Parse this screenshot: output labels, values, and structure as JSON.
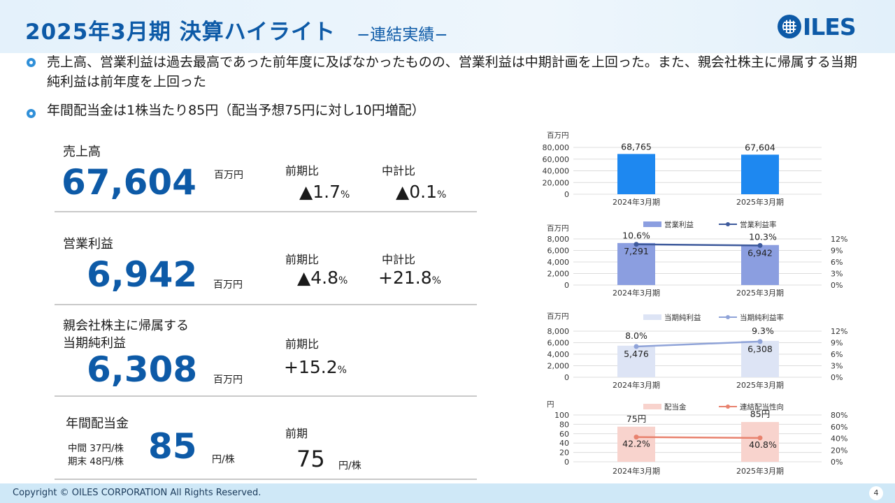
{
  "header": {
    "title": "2025年3月期 決算ハイライト",
    "subtitle": "−連結実績−",
    "logo_text": "ILES"
  },
  "bullets": [
    "売上高、営業利益は過去最高であった前年度に及ばなかったものの、営業利益は中期計画を上回った。また、親会社株主に帰属する当期純利益は前年度を上回った",
    "年間配当金は1株当たり85円（配当予想75円に対し10円増配）"
  ],
  "kpis": {
    "sales": {
      "label": "売上高",
      "value": "67,604",
      "unit": "百万円",
      "yoy_label": "前期比",
      "yoy": "▲1.7",
      "plan_label": "中計比",
      "plan": "▲0.1",
      "pct": "%"
    },
    "op": {
      "label": "営業利益",
      "value": "6,942",
      "unit": "百万円",
      "yoy_label": "前期比",
      "yoy": "▲4.8",
      "plan_label": "中計比",
      "plan": "+21.8",
      "pct": "%"
    },
    "net": {
      "label_line1": "親会社株主に帰属する",
      "label_line2": "当期純利益",
      "value": "6,308",
      "unit": "百万円",
      "yoy_label": "前期比",
      "yoy": "+15.2",
      "pct": "%"
    },
    "div": {
      "label": "年間配当金",
      "interim": "中間 37円/株",
      "final": "期末 48円/株",
      "value": "85",
      "unit": "円/株",
      "prev_label": "前期",
      "prev_value": "75",
      "prev_unit": "円/株"
    }
  },
  "chart_data": [
    {
      "type": "bar",
      "unit_label": "百万円",
      "categories": [
        "2024年3月期",
        "2025年3月期"
      ],
      "series": [
        {
          "values": [
            68765,
            67604
          ],
          "labels": [
            "68,765",
            "67,604"
          ],
          "color": "#1e88f0"
        }
      ],
      "yticks": [
        "80,000",
        "60,000",
        "40,000",
        "20,000",
        "0"
      ],
      "ylim": [
        0,
        80000
      ]
    },
    {
      "type": "bar",
      "unit_label": "百万円",
      "categories": [
        "2024年3月期",
        "2025年3月期"
      ],
      "series": [
        {
          "name": "営業利益",
          "values": [
            7291,
            6942
          ],
          "labels": [
            "7,291",
            "6,942"
          ],
          "color": "#8b9ee0"
        },
        {
          "name": "営業利益率",
          "type": "line",
          "values": [
            10.6,
            10.3
          ],
          "labels": [
            "10.6%",
            "10.3%"
          ],
          "color": "#3e5a9c"
        }
      ],
      "yticks": [
        "8,000",
        "6,000",
        "4,000",
        "2,000",
        "0"
      ],
      "ylim": [
        0,
        8000
      ],
      "y2ticks": [
        "12%",
        "9%",
        "6%",
        "3%",
        "0%"
      ],
      "y2lim": [
        0,
        12
      ]
    },
    {
      "type": "bar",
      "unit_label": "百万円",
      "categories": [
        "2024年3月期",
        "2025年3月期"
      ],
      "series": [
        {
          "name": "当期純利益",
          "values": [
            5476,
            6308
          ],
          "labels": [
            "5,476",
            "6,308"
          ],
          "color": "#dde4f5"
        },
        {
          "name": "当期純利益率",
          "type": "line",
          "values": [
            8.0,
            9.3
          ],
          "labels": [
            "8.0%",
            "9.3%"
          ],
          "color": "#8fa3d8"
        }
      ],
      "yticks": [
        "8,000",
        "6,000",
        "4,000",
        "2,000",
        "0"
      ],
      "ylim": [
        0,
        8000
      ],
      "y2ticks": [
        "12%",
        "9%",
        "6%",
        "3%",
        "0%"
      ],
      "y2lim": [
        0,
        12
      ]
    },
    {
      "type": "bar",
      "unit_label": "円",
      "categories": [
        "2024年3月期",
        "2025年3月期"
      ],
      "series": [
        {
          "name": "配当金",
          "values": [
            75,
            85
          ],
          "labels": [
            "75円",
            "85円"
          ],
          "color": "#f8d3cd"
        },
        {
          "name": "連結配当性向",
          "type": "line",
          "values": [
            42.2,
            40.8
          ],
          "labels": [
            "42.2%",
            "40.8%"
          ],
          "color": "#e8826e"
        }
      ],
      "yticks": [
        "100",
        "80",
        "60",
        "40",
        "20",
        "0"
      ],
      "ylim": [
        0,
        100
      ],
      "y2ticks": [
        "80%",
        "60%",
        "40%",
        "20%",
        "0%"
      ],
      "y2lim": [
        0,
        80
      ]
    }
  ],
  "footer": {
    "copyright": "Copyright © OILES CORPORATION All Rights Reserved.",
    "page": "4"
  }
}
